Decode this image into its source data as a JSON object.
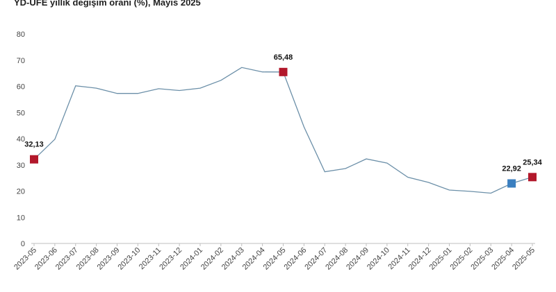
{
  "chart_data": {
    "type": "line",
    "title": "YD-ÜFE yıllık değişim oranı (%), Mayıs 2025",
    "xlabel": "",
    "ylabel": "",
    "ylim": [
      0,
      80
    ],
    "yticks": [
      "0",
      "10",
      "20",
      "30",
      "40",
      "50",
      "60",
      "70",
      "80"
    ],
    "grid": false,
    "categories": [
      "2023-05",
      "2023-06",
      "2023-07",
      "2023-08",
      "2023-09",
      "2023-10",
      "2023-11",
      "2023-12",
      "2024-01",
      "2024-02",
      "2024-03",
      "2024-04",
      "2024-05",
      "2024-06",
      "2024-07",
      "2024-08",
      "2024-09",
      "2024-10",
      "2024-11",
      "2024-12",
      "2025-01",
      "2025-02",
      "2025-03",
      "2025-04",
      "2025-05"
    ],
    "series": [
      {
        "values": [
          32.13,
          39.8,
          60.2,
          59.3,
          57.3,
          57.3,
          59.1,
          58.4,
          59.3,
          62.3,
          67.2,
          65.5,
          65.48,
          44.5,
          27.4,
          28.6,
          32.3,
          30.7,
          25.3,
          23.3,
          20.4,
          19.9,
          19.2,
          22.92,
          25.34
        ]
      }
    ],
    "highlights": [
      {
        "index": 0,
        "label": "32,13",
        "color": "#b2182b"
      },
      {
        "index": 12,
        "label": "65,48",
        "color": "#b2182b"
      },
      {
        "index": 23,
        "label": "22,92",
        "color": "#3a7fc0"
      },
      {
        "index": 24,
        "label": "25,34",
        "color": "#b2182b"
      }
    ],
    "colors": {
      "line": "#6b8fa8",
      "axis": "#bfbfbf"
    }
  }
}
